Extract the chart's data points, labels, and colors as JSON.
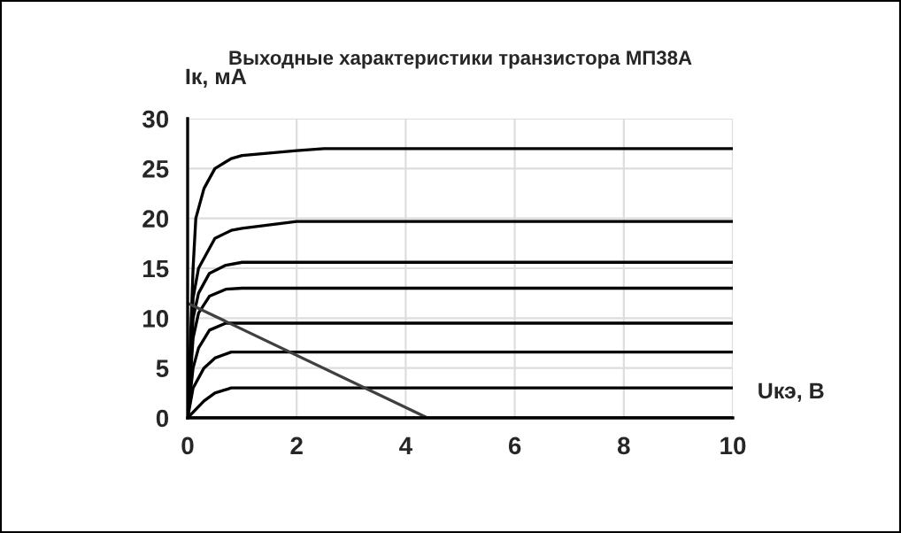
{
  "chart_data": {
    "type": "line",
    "title": "Выходные характеристики транзистора МП38А",
    "xlabel": "Uкэ, В",
    "ylabel": "Iк, мА",
    "xlim": [
      0,
      10
    ],
    "xticks": [
      0,
      2,
      4,
      6,
      8,
      10
    ],
    "ylim": [
      0,
      30
    ],
    "yticks": [
      0,
      5,
      10,
      15,
      20,
      25,
      30
    ],
    "grid": true,
    "legend": false,
    "marker": "none",
    "line_style": "solid",
    "series": [
      {
        "color": "#000000",
        "x": [
          0,
          0.1,
          0.15,
          0.3,
          0.5,
          0.8,
          1,
          2,
          2.5,
          10
        ],
        "values": [
          0,
          15,
          20,
          23,
          25,
          26,
          26.3,
          26.8,
          27,
          27
        ]
      },
      {
        "color": "#000000",
        "x": [
          0,
          0.1,
          0.2,
          0.5,
          0.8,
          1,
          2,
          10
        ],
        "values": [
          0,
          12,
          15,
          18,
          18.8,
          19,
          19.7,
          19.7
        ]
      },
      {
        "color": "#000000",
        "x": [
          0,
          0.1,
          0.2,
          0.4,
          0.7,
          1,
          10
        ],
        "values": [
          0,
          10,
          12.5,
          14.5,
          15.3,
          15.6,
          15.6
        ]
      },
      {
        "color": "#000000",
        "x": [
          0,
          0.1,
          0.2,
          0.4,
          0.7,
          1,
          10
        ],
        "values": [
          0,
          8,
          10.5,
          12.2,
          12.9,
          13,
          13
        ]
      },
      {
        "color": "#000000",
        "x": [
          0,
          0.1,
          0.2,
          0.4,
          0.7,
          10
        ],
        "values": [
          0,
          5,
          7,
          8.8,
          9.5,
          9.5
        ]
      },
      {
        "color": "#000000",
        "x": [
          0,
          0.1,
          0.3,
          0.5,
          0.8,
          10
        ],
        "values": [
          0,
          3,
          5,
          6,
          6.6,
          6.6
        ]
      },
      {
        "color": "#000000",
        "x": [
          0,
          0.3,
          0.5,
          0.8,
          10
        ],
        "values": [
          0,
          1.7,
          2.5,
          3,
          3
        ]
      },
      {
        "color": "#000000",
        "x": [
          0,
          10
        ],
        "values": [
          0,
          0
        ]
      },
      {
        "color": "#404040",
        "x": [
          0,
          4.4
        ],
        "values": [
          11.5,
          0
        ]
      }
    ]
  }
}
